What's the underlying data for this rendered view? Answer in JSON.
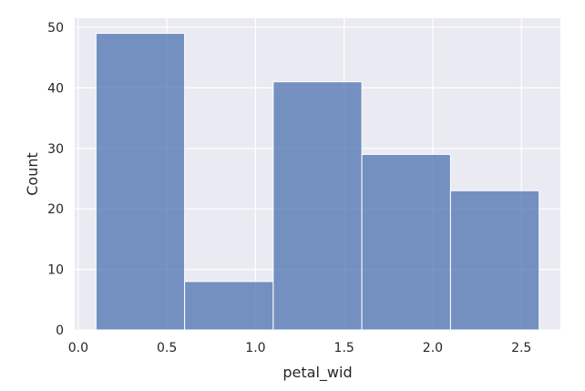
{
  "chart_data": {
    "type": "bar",
    "subtype": "histogram",
    "xlabel": "petal_wid",
    "ylabel": "Count",
    "xlim": [
      -0.02,
      2.72
    ],
    "ylim": [
      0,
      51.5
    ],
    "xticks": [
      0.0,
      0.5,
      1.0,
      1.5,
      2.0,
      2.5
    ],
    "xtick_labels": [
      "0.0",
      "0.5",
      "1.0",
      "1.5",
      "2.0",
      "2.5"
    ],
    "yticks": [
      0,
      10,
      20,
      30,
      40,
      50
    ],
    "ytick_labels": [
      "0",
      "10",
      "20",
      "30",
      "40",
      "50"
    ],
    "bins": [
      {
        "x0": 0.1,
        "x1": 0.6,
        "count": 49
      },
      {
        "x0": 0.6,
        "x1": 1.1,
        "count": 8
      },
      {
        "x0": 1.1,
        "x1": 1.6,
        "count": 41
      },
      {
        "x0": 1.6,
        "x1": 2.1,
        "count": 29
      },
      {
        "x0": 2.1,
        "x1": 2.6,
        "count": 23
      }
    ],
    "grid": true,
    "colors": {
      "background": "#eaeaf2",
      "grid": "#ffffff",
      "bar_fill": "#4c72b0",
      "bar_edge": "#ffffff",
      "text": "#262626"
    }
  }
}
